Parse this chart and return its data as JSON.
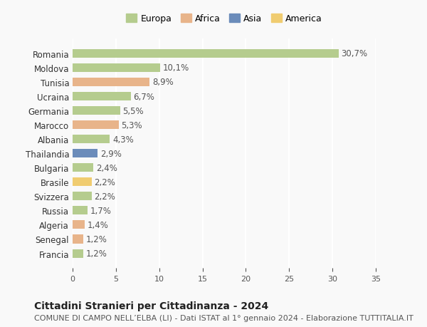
{
  "categories": [
    "Francia",
    "Senegal",
    "Algeria",
    "Russia",
    "Svizzera",
    "Brasile",
    "Bulgaria",
    "Thailandia",
    "Albania",
    "Marocco",
    "Germania",
    "Ucraina",
    "Tunisia",
    "Moldova",
    "Romania"
  ],
  "values": [
    1.2,
    1.2,
    1.4,
    1.7,
    2.2,
    2.2,
    2.4,
    2.9,
    4.3,
    5.3,
    5.5,
    6.7,
    8.9,
    10.1,
    30.7
  ],
  "continents": [
    "Europa",
    "Africa",
    "Africa",
    "Europa",
    "Europa",
    "America",
    "Europa",
    "Asia",
    "Europa",
    "Africa",
    "Europa",
    "Europa",
    "Africa",
    "Europa",
    "Europa"
  ],
  "continent_colors": {
    "Europa": "#b5cc8e",
    "Africa": "#e8b48a",
    "Asia": "#6b8cba",
    "America": "#f0cc70"
  },
  "legend_order": [
    "Europa",
    "Africa",
    "Asia",
    "America"
  ],
  "bar_labels": [
    "1,2%",
    "1,2%",
    "1,4%",
    "1,7%",
    "2,2%",
    "2,2%",
    "2,4%",
    "2,9%",
    "4,3%",
    "5,3%",
    "5,5%",
    "6,7%",
    "8,9%",
    "10,1%",
    "30,7%"
  ],
  "xlim": [
    0,
    35
  ],
  "xticks": [
    0,
    5,
    10,
    15,
    20,
    25,
    30,
    35
  ],
  "title": "Cittadini Stranieri per Cittadinanza - 2024",
  "subtitle": "COMUNE DI CAMPO NELL’ELBA (LI) - Dati ISTAT al 1° gennaio 2024 - Elaborazione TUTTITALIA.IT",
  "background_color": "#f9f9f9",
  "grid_color": "#ffffff",
  "label_fontsize": 8.5,
  "title_fontsize": 10,
  "subtitle_fontsize": 8
}
